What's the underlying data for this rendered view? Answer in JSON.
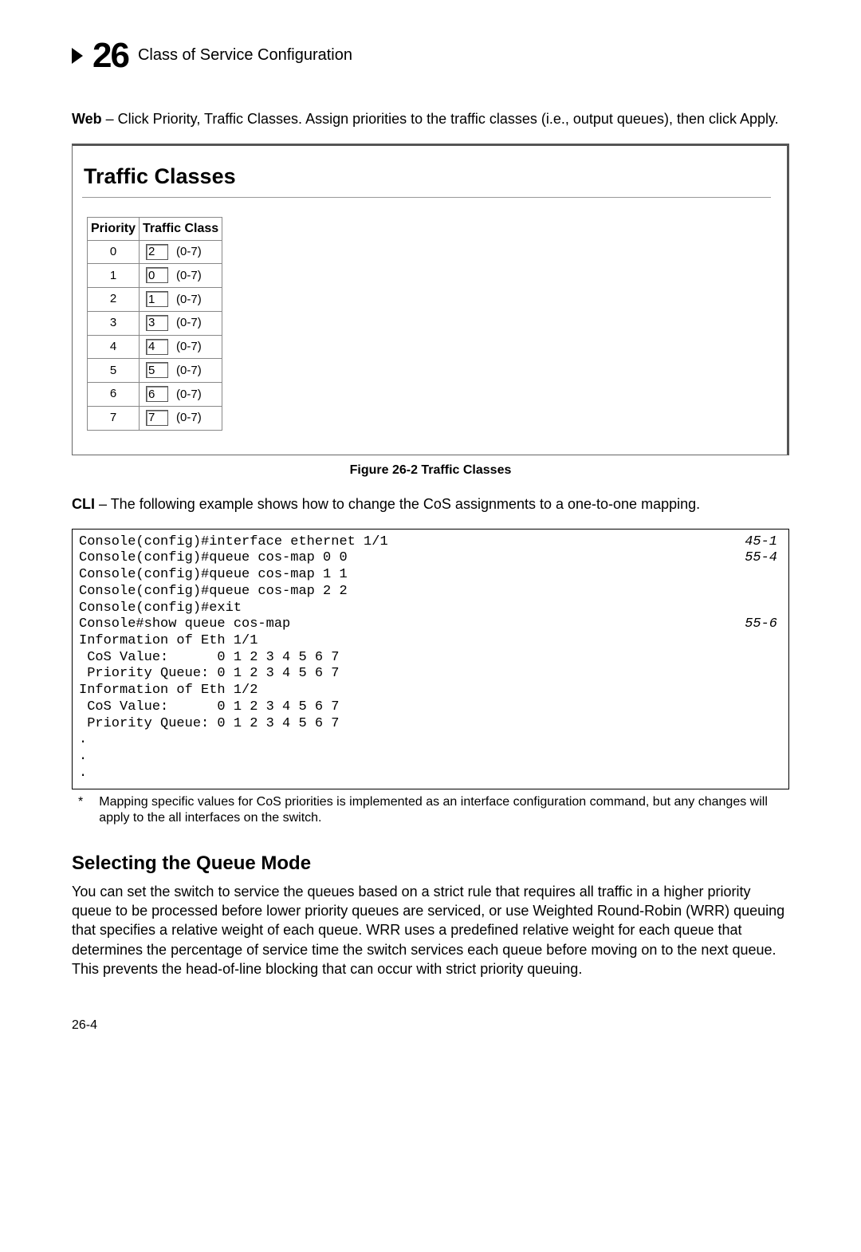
{
  "header": {
    "chapter_number": "26",
    "chapter_title": "Class of Service Configuration"
  },
  "intro": {
    "lead": "Web",
    "rest": " – Click Priority, Traffic Classes. Assign priorities to the traffic classes (i.e., output queues), then click Apply."
  },
  "panel": {
    "title": "Traffic Classes",
    "col1": "Priority",
    "col2": "Traffic Class",
    "range": "(0-7)",
    "rows": [
      {
        "priority": "0",
        "value": "2"
      },
      {
        "priority": "1",
        "value": "0"
      },
      {
        "priority": "2",
        "value": "1"
      },
      {
        "priority": "3",
        "value": "3"
      },
      {
        "priority": "4",
        "value": "4"
      },
      {
        "priority": "5",
        "value": "5"
      },
      {
        "priority": "6",
        "value": "6"
      },
      {
        "priority": "7",
        "value": "7"
      }
    ]
  },
  "figure_caption": "Figure 26-2  Traffic Classes",
  "cli_intro": {
    "lead": "CLI",
    "rest": " – The following example shows how to change the CoS assignments to a one-to-one mapping."
  },
  "cli": {
    "lines": [
      {
        "l": "Console(config)#interface ethernet 1/1",
        "r": "45-1"
      },
      {
        "l": "Console(config)#queue cos-map 0 0",
        "r": "55-4"
      },
      {
        "l": "Console(config)#queue cos-map 1 1",
        "r": ""
      },
      {
        "l": "Console(config)#queue cos-map 2 2",
        "r": ""
      },
      {
        "l": "Console(config)#exit",
        "r": ""
      },
      {
        "l": "Console#show queue cos-map",
        "r": "55-6"
      },
      {
        "l": "Information of Eth 1/1",
        "r": ""
      },
      {
        "l": " CoS Value:      0 1 2 3 4 5 6 7",
        "r": ""
      },
      {
        "l": " Priority Queue: 0 1 2 3 4 5 6 7",
        "r": ""
      },
      {
        "l": "Information of Eth 1/2",
        "r": ""
      },
      {
        "l": " CoS Value:      0 1 2 3 4 5 6 7",
        "r": ""
      },
      {
        "l": " Priority Queue: 0 1 2 3 4 5 6 7",
        "r": ""
      },
      {
        "l": ".",
        "r": ""
      },
      {
        "l": ".",
        "r": ""
      },
      {
        "l": ".",
        "r": ""
      }
    ]
  },
  "footnote": {
    "mark": "*",
    "text": "Mapping specific values for CoS priorities is implemented as an interface configuration command, but any changes will apply to the all interfaces on the switch."
  },
  "subhead": "Selecting the Queue Mode",
  "body": "You can set the switch to service the queues based on a strict rule that requires all traffic in a higher priority queue to be processed before lower priority queues are serviced, or use Weighted Round-Robin (WRR) queuing that specifies a relative weight of each queue. WRR uses a predefined relative weight for each queue that determines the percentage of service time the switch services each queue before moving on to the next queue. This prevents the head-of-line blocking that can occur with strict priority queuing.",
  "page_number": "26-4"
}
